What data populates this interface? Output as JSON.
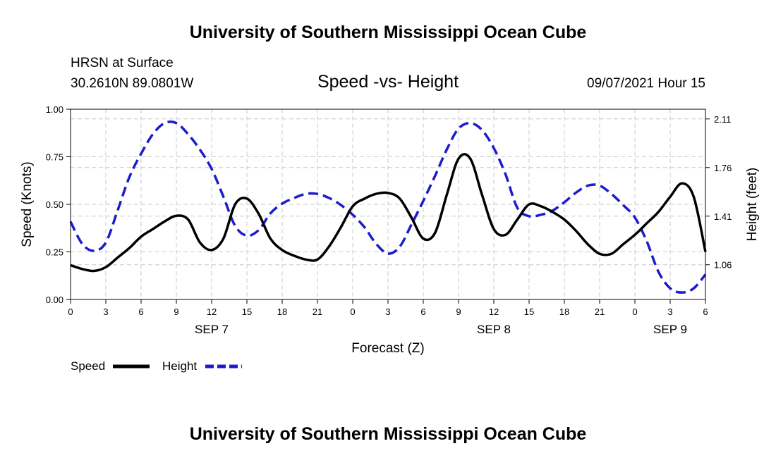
{
  "page": {
    "title_top": "University of Southern Mississippi Ocean Cube",
    "title_bottom": "University of Southern Mississippi Ocean Cube",
    "station": "HRSN at Surface",
    "coords": "30.2610N  89.0801W",
    "chart_title": "Speed -vs- Height",
    "timestamp": "09/07/2021 Hour 15"
  },
  "chart_data": {
    "type": "line",
    "title": "Speed -vs- Height",
    "xlabel": "Forecast (Z)",
    "ylabel": "Speed (Knots)",
    "y2label": "Height (feet)",
    "x_range_hours": [
      0,
      54
    ],
    "x_tick_hours": [
      0,
      3,
      6,
      9,
      12,
      15,
      18,
      21,
      24,
      27,
      30,
      33,
      36,
      39,
      42,
      45,
      48,
      51,
      54
    ],
    "x_tick_labels": [
      "0",
      "3",
      "6",
      "9",
      "12",
      "15",
      "18",
      "21",
      "0",
      "3",
      "6",
      "9",
      "12",
      "15",
      "18",
      "21",
      "0",
      "3",
      "6"
    ],
    "date_labels": [
      {
        "hour": 12,
        "label": "SEP 7"
      },
      {
        "hour": 36,
        "label": "SEP 8"
      },
      {
        "hour": 51,
        "label": "SEP 9"
      }
    ],
    "ylim": [
      0,
      1.0
    ],
    "y_ticks": [
      0,
      0.25,
      0.5,
      0.75,
      1.0
    ],
    "y_tick_labels": [
      "0.00",
      "0.25",
      "0.50",
      "0.75",
      "1.00"
    ],
    "y2lim": [
      0.81,
      2.18
    ],
    "y2_ticks": [
      1.06,
      1.41,
      1.76,
      2.11
    ],
    "y2_tick_labels": [
      "1.06",
      "1.41",
      "1.76",
      "2.11"
    ],
    "grid": true,
    "series": [
      {
        "name": "Speed",
        "axis": "left",
        "color": "#000000",
        "style": "solid",
        "points": [
          [
            0,
            0.18
          ],
          [
            1,
            0.16
          ],
          [
            2,
            0.15
          ],
          [
            3,
            0.17
          ],
          [
            4,
            0.22
          ],
          [
            5,
            0.27
          ],
          [
            6,
            0.33
          ],
          [
            7,
            0.37
          ],
          [
            8,
            0.41
          ],
          [
            9,
            0.44
          ],
          [
            10,
            0.42
          ],
          [
            11,
            0.3
          ],
          [
            12,
            0.26
          ],
          [
            13,
            0.32
          ],
          [
            14,
            0.5
          ],
          [
            15,
            0.53
          ],
          [
            16,
            0.45
          ],
          [
            17,
            0.32
          ],
          [
            18,
            0.26
          ],
          [
            19,
            0.23
          ],
          [
            20,
            0.21
          ],
          [
            21,
            0.21
          ],
          [
            22,
            0.28
          ],
          [
            23,
            0.38
          ],
          [
            24,
            0.49
          ],
          [
            25,
            0.53
          ],
          [
            26,
            0.555
          ],
          [
            27,
            0.56
          ],
          [
            28,
            0.53
          ],
          [
            29,
            0.43
          ],
          [
            30,
            0.32
          ],
          [
            31,
            0.35
          ],
          [
            32,
            0.55
          ],
          [
            33,
            0.74
          ],
          [
            34,
            0.74
          ],
          [
            35,
            0.55
          ],
          [
            36,
            0.37
          ],
          [
            37,
            0.34
          ],
          [
            38,
            0.42
          ],
          [
            39,
            0.5
          ],
          [
            40,
            0.49
          ],
          [
            41,
            0.46
          ],
          [
            42,
            0.42
          ],
          [
            43,
            0.36
          ],
          [
            44,
            0.29
          ],
          [
            45,
            0.24
          ],
          [
            46,
            0.24
          ],
          [
            47,
            0.29
          ],
          [
            48,
            0.34
          ],
          [
            49,
            0.4
          ],
          [
            50,
            0.46
          ],
          [
            51,
            0.54
          ],
          [
            52,
            0.61
          ],
          [
            53,
            0.54
          ],
          [
            54,
            0.25
          ]
        ]
      },
      {
        "name": "Height",
        "axis": "right",
        "color": "#1c1ccc",
        "style": "dashed",
        "points": [
          [
            0,
            1.37
          ],
          [
            1,
            1.21
          ],
          [
            2,
            1.16
          ],
          [
            3,
            1.22
          ],
          [
            4,
            1.45
          ],
          [
            5,
            1.69
          ],
          [
            6,
            1.86
          ],
          [
            7,
            2.0
          ],
          [
            8,
            2.08
          ],
          [
            9,
            2.08
          ],
          [
            10,
            2.0
          ],
          [
            11,
            1.89
          ],
          [
            12,
            1.75
          ],
          [
            13,
            1.55
          ],
          [
            14,
            1.34
          ],
          [
            15,
            1.27
          ],
          [
            16,
            1.31
          ],
          [
            17,
            1.43
          ],
          [
            18,
            1.5
          ],
          [
            19,
            1.54
          ],
          [
            20,
            1.57
          ],
          [
            21,
            1.57
          ],
          [
            22,
            1.54
          ],
          [
            23,
            1.49
          ],
          [
            24,
            1.42
          ],
          [
            25,
            1.33
          ],
          [
            26,
            1.21
          ],
          [
            27,
            1.14
          ],
          [
            28,
            1.19
          ],
          [
            29,
            1.35
          ],
          [
            30,
            1.52
          ],
          [
            31,
            1.7
          ],
          [
            32,
            1.89
          ],
          [
            33,
            2.04
          ],
          [
            34,
            2.08
          ],
          [
            35,
            2.03
          ],
          [
            36,
            1.9
          ],
          [
            37,
            1.71
          ],
          [
            38,
            1.47
          ],
          [
            39,
            1.41
          ],
          [
            40,
            1.42
          ],
          [
            41,
            1.45
          ],
          [
            42,
            1.51
          ],
          [
            43,
            1.58
          ],
          [
            44,
            1.63
          ],
          [
            45,
            1.63
          ],
          [
            46,
            1.57
          ],
          [
            47,
            1.49
          ],
          [
            48,
            1.4
          ],
          [
            49,
            1.23
          ],
          [
            50,
            1.01
          ],
          [
            51,
            0.89
          ],
          [
            52,
            0.86
          ],
          [
            53,
            0.89
          ],
          [
            54,
            0.99
          ]
        ]
      }
    ],
    "legend": [
      {
        "label": "Speed",
        "color": "#000000",
        "style": "solid"
      },
      {
        "label": "Height",
        "color": "#1c1ccc",
        "style": "dashed"
      }
    ]
  }
}
